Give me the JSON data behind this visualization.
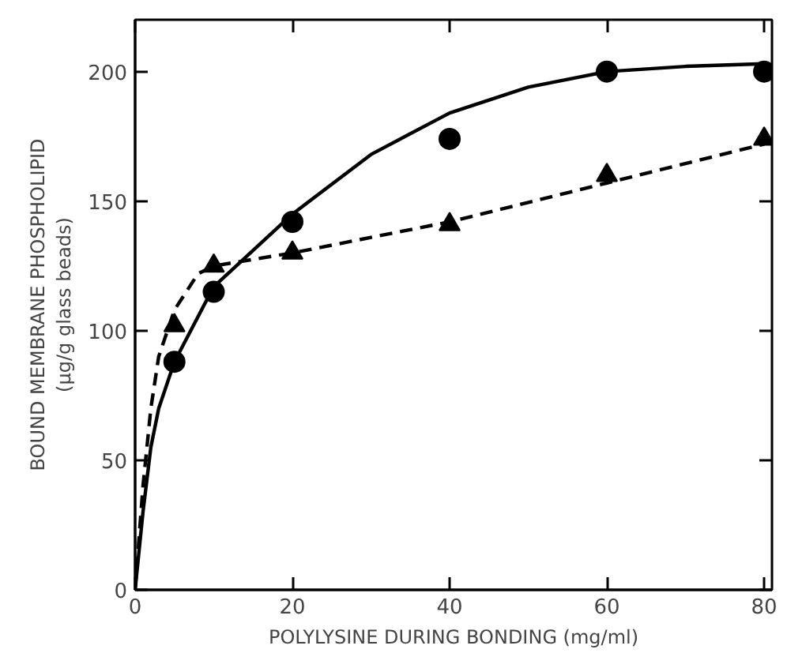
{
  "chart_data": {
    "type": "scatter",
    "xlabel": "POLYLYSINE DURING BONDING (mg/ml)",
    "ylabel": "BOUND MEMBRANE PHOSPHOLIPID\n(µg/g glass beads)",
    "xlim": [
      0,
      81
    ],
    "ylim": [
      0,
      220
    ],
    "xticks": [
      0,
      20,
      40,
      60,
      80
    ],
    "yticks": [
      0,
      50,
      100,
      150,
      200
    ],
    "grid": false,
    "series": [
      {
        "marker": "circle",
        "color": "#000000",
        "x": [
          5,
          10,
          20,
          40,
          60,
          80
        ],
        "values": [
          88,
          115,
          142,
          174,
          200,
          200
        ]
      },
      {
        "type": "line",
        "line_style": "solid",
        "color": "#000000",
        "x": [
          0,
          1,
          2,
          3,
          5,
          10,
          20,
          30,
          40,
          50,
          60,
          70,
          80
        ],
        "values": [
          0,
          30,
          55,
          70,
          88,
          117,
          145,
          168,
          184,
          194,
          200,
          202,
          203
        ]
      },
      {
        "marker": "triangle",
        "color": "#000000",
        "x": [
          5,
          10,
          20,
          40,
          60,
          80
        ],
        "values": [
          102,
          125,
          130,
          141,
          160,
          174
        ]
      },
      {
        "type": "line",
        "line_style": "dashed",
        "color": "#000000",
        "x": [
          0,
          1,
          2,
          3,
          5,
          8,
          10,
          20,
          40,
          60,
          80
        ],
        "values": [
          0,
          40,
          70,
          90,
          108,
          122,
          125,
          130,
          142,
          157,
          172
        ]
      }
    ]
  }
}
